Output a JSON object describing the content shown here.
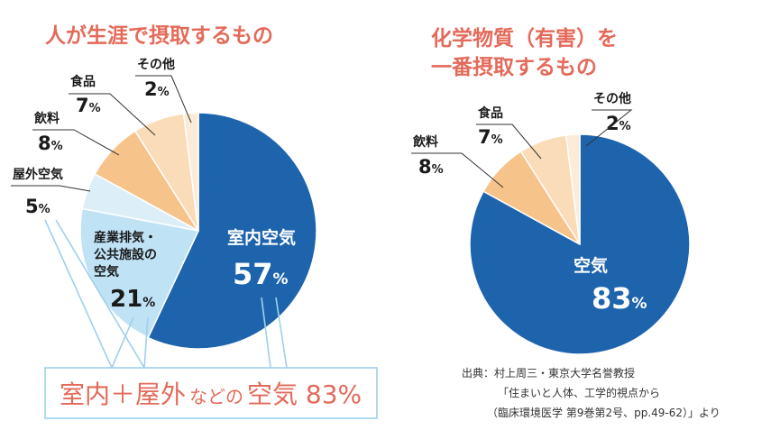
{
  "colors": {
    "indoor": "#1e64ad",
    "industrial": "#bfe2f5",
    "outdoor": "#dceff9",
    "drink": "#f6c38b",
    "food": "#fadcb8",
    "other": "#fcebd7",
    "accent": "#e46a5a",
    "bracket": "#9fd0ea"
  },
  "chart_data": [
    {
      "type": "pie",
      "title": "人が生涯で摂取するもの",
      "slices": [
        {
          "name": "室内空気",
          "value": 57,
          "pct": "%"
        },
        {
          "name": "産業排気・公共施設の空気",
          "name_lines": [
            "産業排気・",
            "公共施設の",
            "空気"
          ],
          "value": 21,
          "pct": "%"
        },
        {
          "name": "屋外空気",
          "value": 5,
          "pct": "%"
        },
        {
          "name": "飲料",
          "value": 8,
          "pct": "%"
        },
        {
          "name": "食品",
          "value": 7,
          "pct": "%"
        },
        {
          "name": "その他",
          "value": 2,
          "pct": "%"
        }
      ]
    },
    {
      "type": "pie",
      "title_lines": [
        "化学物質（有害）を",
        "一番摂取するもの"
      ],
      "slices": [
        {
          "name": "空気",
          "value": 83,
          "pct": "%"
        },
        {
          "name": "飲料",
          "value": 8,
          "pct": "%"
        },
        {
          "name": "食品",
          "value": 7,
          "pct": "%"
        },
        {
          "name": "その他",
          "value": 2,
          "pct": "%"
        }
      ]
    }
  ],
  "callout": {
    "part1": "室内＋屋外",
    "part2": "などの",
    "part3": "空気 83%"
  },
  "source": {
    "line1": "出典：村上周三・東京大学名誉教授",
    "line2": "「住まいと人体、工学的視点から",
    "line3": "（臨床環境医学 第9巻第2号、pp.49-62）」より"
  }
}
